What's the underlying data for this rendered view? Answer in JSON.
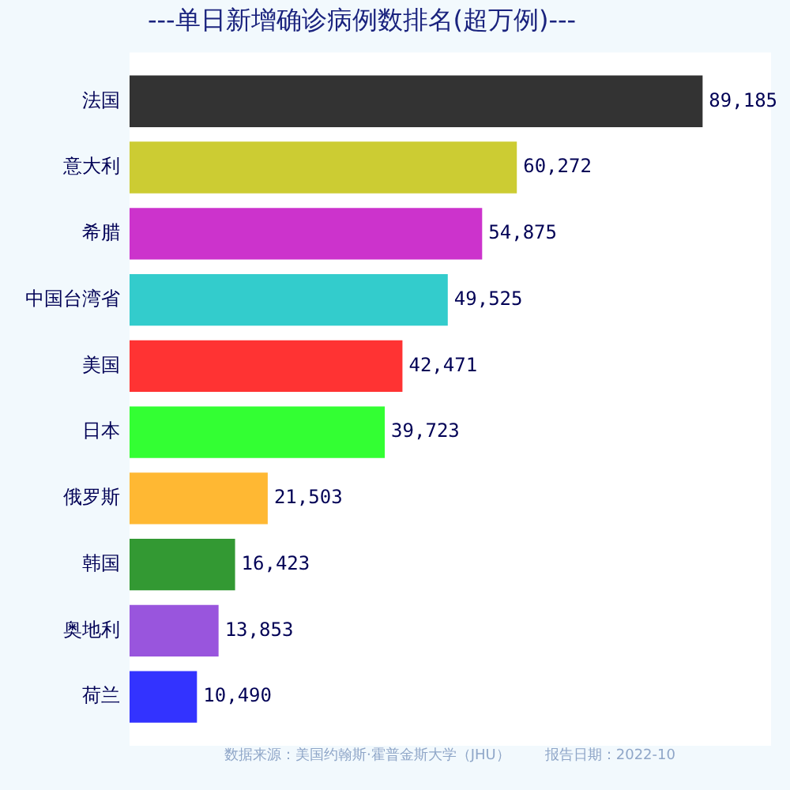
{
  "chart_data": {
    "type": "bar",
    "orientation": "horizontal",
    "title": "---单日新增确诊病例数排名(超万例)---",
    "categories": [
      "法国",
      "意大利",
      "希腊",
      "中国台湾省",
      "美国",
      "日本",
      "俄罗斯",
      "韩国",
      "奥地利",
      "荷兰"
    ],
    "values": [
      89185,
      60272,
      54875,
      49525,
      42471,
      39723,
      21503,
      16423,
      13853,
      10490
    ],
    "colors": [
      "#333333",
      "#cccc33",
      "#cc33cc",
      "#33cccc",
      "#ff3333",
      "#33ff33",
      "#ffb833",
      "#339933",
      "#9955dd",
      "#3333ff"
    ],
    "value_labels": [
      "89,185",
      "60,272",
      "54,875",
      "49,525",
      "42,471",
      "39,723",
      "21,503",
      "16,423",
      "13,853",
      "10,490"
    ],
    "annotations": [
      "数据来源：美国约翰斯·霍普金斯大学（JHU）",
      "报告日期：2022-10"
    ],
    "grid": false,
    "legend": false
  }
}
